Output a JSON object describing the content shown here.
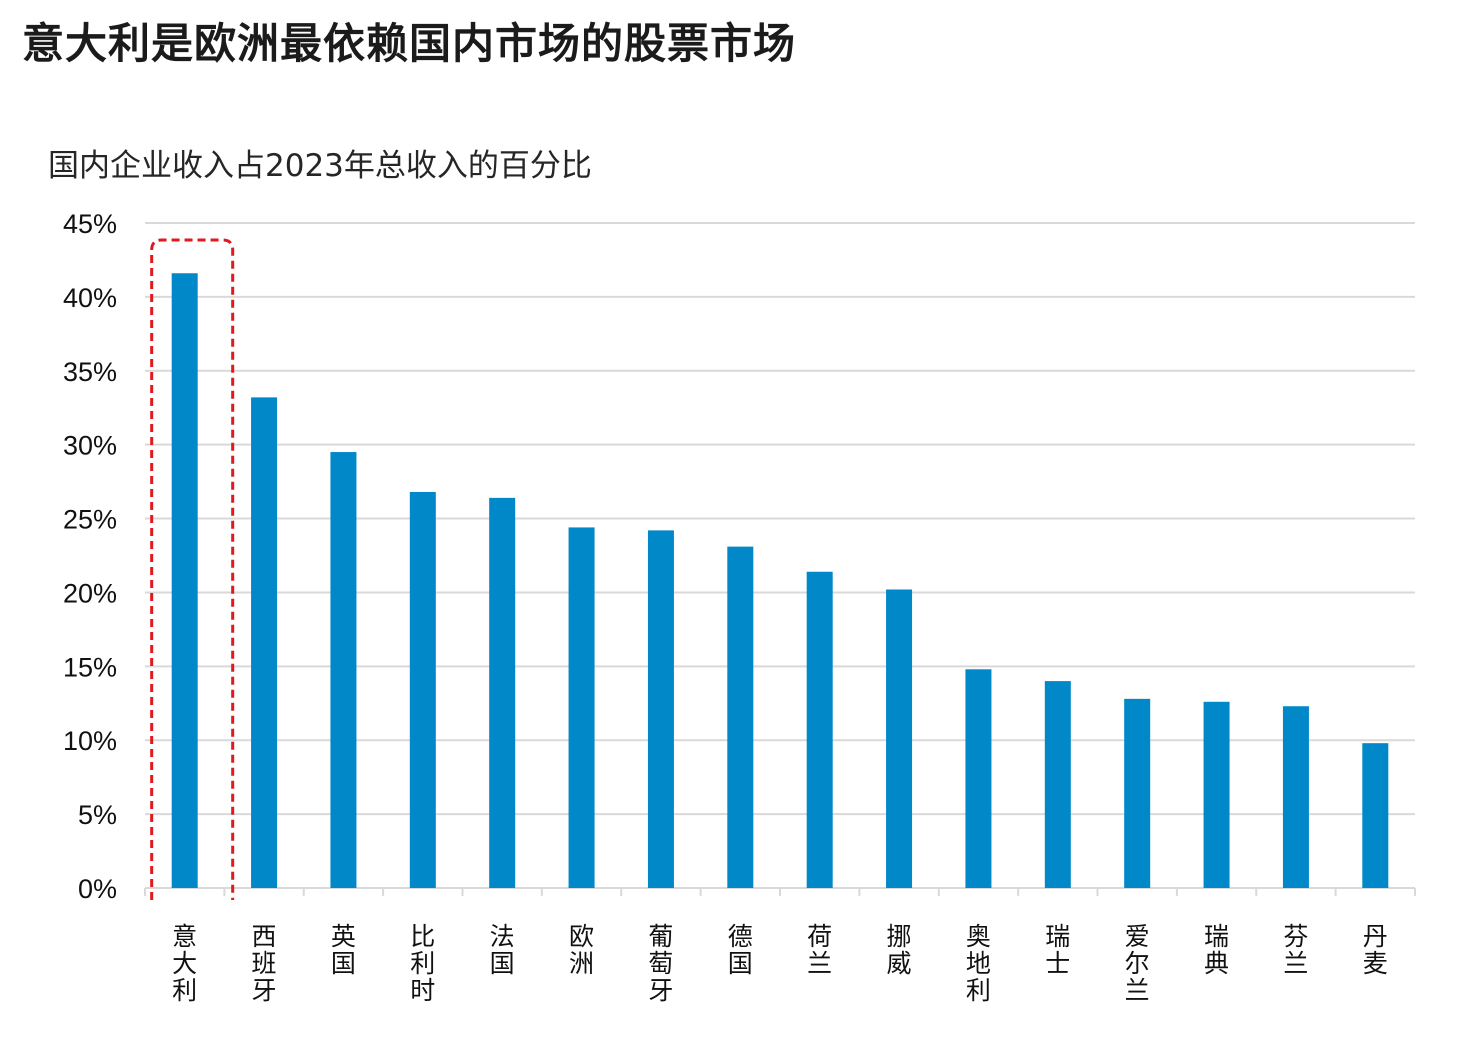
{
  "title": "意大利是欧洲最依赖国内市场的股票市场",
  "chart_data": {
    "type": "bar",
    "title": "国内企业收入占2023年总收入的百分比",
    "xlabel": "",
    "ylabel": "",
    "categories": [
      "意大利",
      "西班牙",
      "英国",
      "比利时",
      "法国",
      "欧洲",
      "葡萄牙",
      "德国",
      "荷兰",
      "挪威",
      "奥地利",
      "瑞士",
      "爱尔兰",
      "瑞典",
      "芬兰",
      "丹麦"
    ],
    "values": [
      41.6,
      33.2,
      29.5,
      26.8,
      26.4,
      24.4,
      24.2,
      23.1,
      21.4,
      20.2,
      14.8,
      14.0,
      12.8,
      12.6,
      12.3,
      9.8
    ],
    "ylim": [
      0,
      45
    ],
    "yticks": [
      "0%",
      "5%",
      "10%",
      "15%",
      "20%",
      "25%",
      "30%",
      "35%",
      "40%",
      "45%"
    ],
    "grid": true,
    "bar_color": "#0088c9",
    "highlight": {
      "category": "意大利",
      "color": "#e0191e",
      "style": "dashed-rounded-box"
    }
  }
}
